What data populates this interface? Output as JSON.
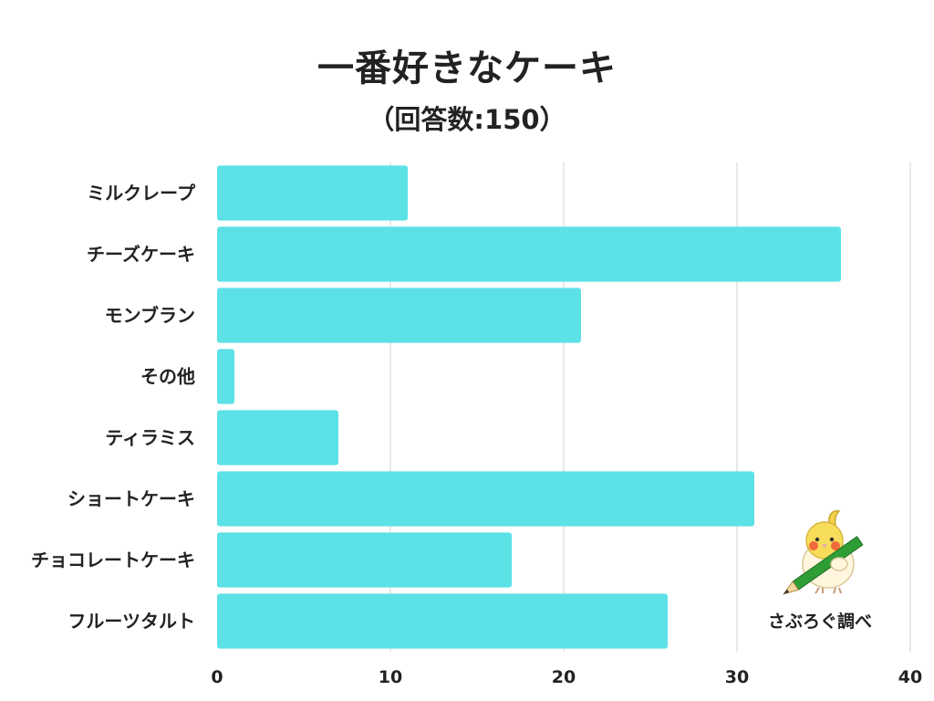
{
  "title": "一番好きなケーキ",
  "subtitle": "（回答数:150）",
  "source": "さぶろぐ調べ",
  "colors": {
    "bar": "#5ce1e6",
    "grid": "#d0d0d0",
    "text": "#222222"
  },
  "chart_data": {
    "type": "bar",
    "orientation": "horizontal",
    "title": "一番好きなケーキ",
    "subtitle": "（回答数:150）",
    "categories": [
      "ミルクレープ",
      "チーズケーキ",
      "モンブラン",
      "その他",
      "ティラミス",
      "ショートケーキ",
      "チョコレートケーキ",
      "フルーツタルト"
    ],
    "values": [
      11,
      36,
      21,
      1,
      7,
      31,
      17,
      26
    ],
    "xlim": [
      0,
      40
    ],
    "xticks": [
      0,
      10,
      20,
      30,
      40
    ],
    "grid": true,
    "legend": "none"
  }
}
